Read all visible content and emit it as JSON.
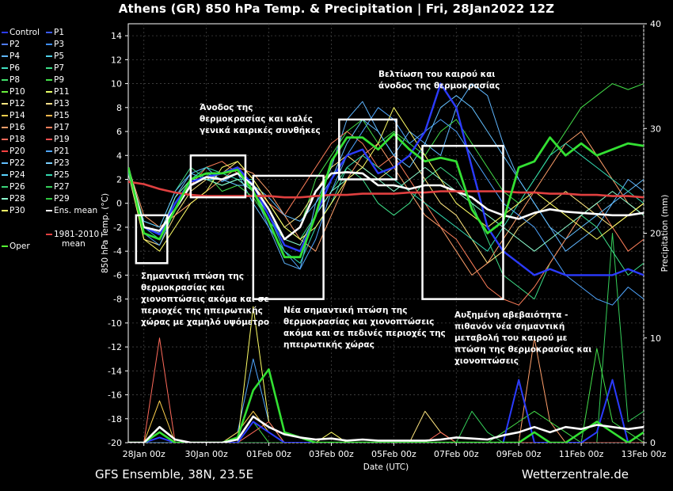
{
  "title": "Athens  (GR)  850 hPa Temp. & Precipitation | Fri, 28Jan2022 12Z",
  "footer": {
    "left": "GFS Ensemble, 38N, 23.5E",
    "right": "Wetterzentrale.de"
  },
  "legend": [
    {
      "label": "Control",
      "color": "#2b3bff"
    },
    {
      "label": "P1",
      "color": "#3a5cff"
    },
    {
      "label": "P2",
      "color": "#4f7bff"
    },
    {
      "label": "P3",
      "color": "#3f8fff"
    },
    {
      "label": "P4",
      "color": "#5fb6ff"
    },
    {
      "label": "P5",
      "color": "#4fd0e8"
    },
    {
      "label": "P6",
      "color": "#40e0c0"
    },
    {
      "label": "P7",
      "color": "#3ee089"
    },
    {
      "label": "P8",
      "color": "#41e06a"
    },
    {
      "label": "P9",
      "color": "#44e04a"
    },
    {
      "label": "P10",
      "color": "#6af03c"
    },
    {
      "label": "P11",
      "color": "#e8ff66"
    },
    {
      "label": "P12",
      "color": "#ffe680"
    },
    {
      "label": "P13",
      "color": "#ffe08a"
    },
    {
      "label": "P14",
      "color": "#ffd04d"
    },
    {
      "label": "P15",
      "color": "#ffb84d"
    },
    {
      "label": "P16",
      "color": "#ff9f6a"
    },
    {
      "label": "P17",
      "color": "#ff7f5a"
    },
    {
      "label": "P18",
      "color": "#ff6a5a"
    },
    {
      "label": "P19",
      "color": "#ff5050"
    },
    {
      "label": "P20",
      "color": "#ff4040"
    },
    {
      "label": "P21",
      "color": "#4fa6ff"
    },
    {
      "label": "P22",
      "color": "#62bfff"
    },
    {
      "label": "P23",
      "color": "#7ad0ff"
    },
    {
      "label": "P24",
      "color": "#59d4ff"
    },
    {
      "label": "P25",
      "color": "#33d9b0"
    },
    {
      "label": "P26",
      "color": "#3bd47a"
    },
    {
      "label": "P27",
      "color": "#35cf5a"
    },
    {
      "label": "P28",
      "color": "#8dffd0"
    },
    {
      "label": "P29",
      "color": "#2fc840"
    },
    {
      "label": "P30",
      "color": "#ffff66"
    },
    {
      "label": "Ens. mean",
      "color": "#ffffff"
    },
    {
      "label": "1981-2010 mean",
      "color": "#e04040"
    },
    {
      "label": "Oper",
      "color": "#55ff33"
    }
  ],
  "annotations": [
    {
      "id": "drop1",
      "lines": [
        "Σημαντική πτώση της",
        "θερμοκρασίας και",
        "χιονοπτώσεις ακόμα και σε",
        "περιοχές της ηπειρωτικής",
        "χώρας με χαμηλό υψόμετρο"
      ]
    },
    {
      "id": "rise1",
      "lines": [
        "Άνοδος της",
        "θερμοκρασίας και καλές",
        "γενικά καιρικές συνθήκες"
      ]
    },
    {
      "id": "drop2",
      "lines": [
        "Νέα σημαντική πτώση της",
        "θερμοκρασίας και χιονοπτώσεις",
        "ακόμα και σε πεδινές περιοχές της",
        "ηπειρωτικής χώρας"
      ]
    },
    {
      "id": "improve",
      "lines": [
        "Βελτίωση του καιρού και",
        "άνοδος της θερμοκρασίας"
      ]
    },
    {
      "id": "uncertain",
      "lines": [
        "Αυξημένη αβεβαιότητα -",
        "πιθανόν νέα σημαντική",
        "μεταβολή του καιρού με",
        "πτώση της θερμοκρασίας και",
        "χιονοπτώσεις"
      ]
    }
  ],
  "chart_data": {
    "type": "line",
    "xlabel": "Date (UTC)",
    "ylabel": "850 hPa Temp. (°C)",
    "y2label": "Precipitation (mm)",
    "ylim": [
      -20,
      15
    ],
    "y2lim": [
      0,
      40
    ],
    "yticks": [
      -20,
      -18,
      -16,
      -14,
      -12,
      -10,
      -8,
      -6,
      -4,
      -2,
      0,
      2,
      4,
      6,
      8,
      10,
      12,
      14
    ],
    "y2ticks": [
      0,
      10,
      20,
      30,
      40
    ],
    "xticks": [
      "28Jan 00z",
      "30Jan 00z",
      "01Feb 00z",
      "03Feb 00z",
      "05Feb 00z",
      "07Feb 00z",
      "09Feb 00z",
      "11Feb 00z",
      "13Feb 00z"
    ],
    "x_hours": [
      -12,
      0,
      12,
      24,
      36,
      48,
      60,
      72,
      84,
      96,
      108,
      120,
      132,
      144,
      156,
      168,
      180,
      192,
      204,
      216,
      228,
      240,
      252,
      264,
      276,
      288,
      300,
      312,
      324,
      336,
      348,
      360,
      372,
      384
    ],
    "series": [
      {
        "name": "Ens. mean",
        "color": "#ffffff",
        "width": 2.6,
        "values": [
          3,
          -2,
          -2.3,
          -0.5,
          1.5,
          2.2,
          2,
          2.5,
          1.5,
          -0.5,
          -3,
          -2,
          1,
          2.5,
          2.6,
          2.5,
          1.5,
          1.5,
          1.2,
          1.5,
          1.5,
          1,
          0.5,
          -0.5,
          -1,
          -1.3,
          -0.8,
          -0.5,
          -0.7,
          -0.8,
          -0.9,
          -1,
          -1,
          -0.8
        ]
      },
      {
        "name": "1981-2010 mean",
        "color": "#e04040",
        "width": 2.6,
        "values": [
          1.8,
          1.6,
          1.2,
          0.9,
          0.7,
          0.6,
          0.6,
          0.6,
          0.6,
          0.6,
          0.5,
          0.5,
          0.6,
          0.7,
          0.7,
          0.8,
          0.8,
          0.8,
          0.9,
          0.9,
          1,
          1,
          1,
          1,
          1,
          0.9,
          0.9,
          0.8,
          0.8,
          0.7,
          0.7,
          0.6,
          0.6,
          0.5
        ]
      },
      {
        "name": "Oper",
        "color": "#33e033",
        "width": 2.8,
        "values": [
          3,
          -2.5,
          -3,
          -0.5,
          2,
          2.5,
          2.5,
          2.8,
          1,
          -1.5,
          -4.5,
          -4.5,
          -1,
          3.5,
          5.5,
          5.5,
          4.5,
          5.8,
          4.5,
          3.5,
          3.8,
          3.5,
          -0.5,
          -2.5,
          -1.5,
          3,
          3.5,
          5.5,
          4,
          5,
          4,
          4.5,
          5,
          4.8
        ]
      },
      {
        "name": "Control",
        "color": "#2b3bff",
        "width": 2.4,
        "values": [
          2.8,
          -2,
          -2.6,
          0,
          1.8,
          2.2,
          2.5,
          3,
          1.5,
          -1,
          -3.5,
          -4,
          -1,
          2,
          4,
          4.5,
          2.5,
          3,
          4,
          6,
          10,
          8,
          3,
          -2,
          -4,
          -5,
          -6,
          -5.5,
          -6,
          -6,
          -6,
          -6,
          -5.5,
          -6
        ]
      },
      {
        "name": "P4",
        "color": "#5fb6ff",
        "width": 1,
        "values": [
          2.5,
          -2.5,
          -3,
          0.5,
          2.5,
          3,
          1.8,
          2.5,
          0,
          -2,
          -5,
          -5.5,
          0,
          3,
          7,
          8.5,
          6,
          4,
          6,
          5,
          4,
          8,
          10,
          9,
          5,
          2,
          0,
          -2,
          -4,
          -3,
          -2,
          0,
          2,
          1
        ]
      },
      {
        "name": "P7",
        "color": "#3ee089",
        "width": 1,
        "values": [
          3,
          -1.5,
          -2,
          1,
          3,
          2,
          1.5,
          2,
          2,
          0,
          -2,
          -3,
          -1,
          1,
          3,
          2,
          0,
          -1,
          0,
          2,
          3,
          2,
          0,
          -3,
          -6,
          -7,
          -8,
          -5,
          -3,
          -1,
          -2,
          -4,
          -6,
          -5
        ]
      },
      {
        "name": "P9",
        "color": "#44e04a",
        "width": 1,
        "values": [
          3,
          -2,
          -2.5,
          0,
          2,
          2.5,
          1,
          1.5,
          0.5,
          -1.5,
          -3,
          -2,
          2,
          4,
          6,
          7,
          5,
          6,
          5,
          4,
          6,
          7,
          5,
          3,
          1,
          0,
          2,
          4,
          6,
          8,
          9,
          10,
          9.5,
          10
        ]
      },
      {
        "name": "P12",
        "color": "#ffe680",
        "width": 1,
        "values": [
          2.5,
          -3,
          -3.5,
          -1,
          1,
          2,
          2.5,
          3.5,
          2,
          0,
          -2,
          -1,
          1,
          3,
          4,
          3,
          2,
          3,
          4,
          2,
          0,
          -1,
          -3,
          -5,
          -4,
          -2,
          -1,
          0,
          1,
          0,
          -1,
          -2,
          -1,
          0
        ]
      },
      {
        "name": "P16",
        "color": "#ff9f6a",
        "width": 1,
        "values": [
          3,
          -1,
          -2,
          -1,
          0,
          1,
          2,
          3,
          2.5,
          1,
          -1,
          -3,
          -4,
          -1,
          2,
          4,
          5,
          3,
          1,
          -1,
          -2,
          -4,
          -6,
          -5,
          -3,
          -1,
          1,
          3,
          5,
          6,
          4,
          2,
          0,
          -1
        ]
      },
      {
        "name": "P17",
        "color": "#ff7f5a",
        "width": 1,
        "values": [
          2.5,
          -2,
          -2.5,
          0,
          1.5,
          3,
          3.5,
          2.5,
          1.5,
          0,
          -1,
          1,
          3,
          5,
          6,
          5,
          3,
          4,
          2,
          0,
          -2,
          -3,
          -5,
          -7,
          -8,
          -8.5,
          -7,
          -5,
          -3,
          -1,
          0,
          -2,
          -4,
          -3
        ]
      },
      {
        "name": "P21",
        "color": "#4fa6ff",
        "width": 1,
        "values": [
          3,
          -2.5,
          -3.5,
          -0.5,
          2,
          2.5,
          2,
          2.5,
          1,
          -2,
          -4,
          -5.5,
          -3,
          1,
          4,
          6,
          8,
          7,
          5,
          6,
          7,
          6,
          4,
          2,
          0,
          -1,
          -2,
          -4,
          -6,
          -7,
          -8,
          -8.5,
          -7,
          -8
        ]
      },
      {
        "name": "P22",
        "color": "#62bfff",
        "width": 1,
        "values": [
          2.5,
          -1.5,
          -2,
          1,
          2.5,
          2,
          2,
          1.5,
          1.5,
          0.5,
          -1,
          -1.5,
          0,
          2,
          5,
          7,
          6,
          4,
          3,
          5,
          8,
          9,
          8,
          6,
          4,
          2,
          0,
          -2,
          -3,
          -2,
          -1,
          0,
          1,
          2
        ]
      },
      {
        "name": "P25",
        "color": "#33d9b0",
        "width": 1,
        "values": [
          3,
          -2,
          -3,
          0,
          2,
          3,
          2.5,
          2,
          1,
          -1,
          -4,
          -5,
          -2,
          0,
          3,
          4,
          3,
          2,
          1,
          0,
          -1,
          -2,
          -3,
          -4,
          -2,
          0,
          2,
          4,
          5,
          4,
          3,
          2,
          1,
          0
        ]
      },
      {
        "name": "P28",
        "color": "#8dffd0",
        "width": 1,
        "values": [
          2.5,
          -2,
          -2.5,
          0.5,
          2,
          2,
          1.5,
          2,
          1,
          -1,
          -3,
          -3.5,
          -1,
          1,
          2,
          3,
          2,
          1,
          2,
          3,
          2,
          1,
          0,
          -1,
          -2,
          -3,
          -4,
          -3,
          -2,
          -1,
          0,
          1,
          0,
          -1
        ]
      },
      {
        "name": "P30",
        "color": "#ffff66",
        "width": 1,
        "values": [
          3,
          -3,
          -4,
          -2,
          0,
          1,
          3,
          3.5,
          2,
          0,
          -2,
          -3,
          -2,
          0,
          2,
          3,
          5,
          8,
          6,
          4,
          2,
          0,
          -1,
          -2,
          -1,
          0,
          1,
          0,
          -1,
          -2,
          -3,
          -2,
          -1,
          0
        ]
      }
    ],
    "precip_series": [
      {
        "name": "Ens. mean",
        "color": "#ffffff",
        "width": 2.6,
        "values": [
          0,
          0,
          1.5,
          0.3,
          0,
          0,
          0,
          0.3,
          2.5,
          1.5,
          0.8,
          0.5,
          0.3,
          0.4,
          0.2,
          0.3,
          0.2,
          0.2,
          0.2,
          0.2,
          0.3,
          0.5,
          0.4,
          0.3,
          0.7,
          1,
          1.5,
          1,
          1.5,
          1.3,
          1.7,
          1.5,
          1.3,
          1.5
        ]
      },
      {
        "name": "Oper",
        "color": "#33e033",
        "width": 2.6,
        "values": [
          0,
          0,
          1,
          0,
          0,
          0,
          0,
          0.5,
          5,
          7,
          1,
          0.5,
          0,
          0,
          0,
          0,
          0,
          0,
          0,
          0,
          0,
          0,
          0,
          0,
          0,
          0,
          1,
          0,
          0,
          1,
          2,
          1,
          0,
          1
        ]
      },
      {
        "name": "Control",
        "color": "#2b3bff",
        "width": 2,
        "values": [
          0,
          0,
          0.5,
          0,
          0,
          0,
          0,
          0,
          2,
          1,
          0,
          0,
          0,
          0,
          0,
          0,
          0,
          0,
          0,
          0,
          0,
          0,
          0,
          0,
          0,
          6,
          0,
          0,
          0,
          0,
          1,
          6,
          0,
          1
        ]
      },
      {
        "name": "P18",
        "color": "#ff6a5a",
        "width": 1,
        "values": [
          0,
          0,
          10,
          0,
          0,
          0,
          0,
          0,
          1,
          2,
          0,
          0,
          0,
          0,
          0,
          0,
          0,
          0,
          0,
          0,
          1,
          0,
          0,
          0,
          0,
          0,
          0,
          0,
          0,
          0,
          0,
          0,
          0,
          0
        ]
      },
      {
        "name": "P14",
        "color": "#ffd04d",
        "width": 1,
        "values": [
          0,
          0,
          4,
          0,
          0,
          0,
          0,
          1,
          3,
          1,
          0,
          0,
          0,
          0,
          0,
          0,
          0,
          0,
          0,
          0,
          0,
          0,
          0,
          0,
          0,
          0,
          0,
          0,
          0,
          0,
          0,
          0,
          0,
          0
        ]
      },
      {
        "name": "P30",
        "color": "#ffff66",
        "width": 1,
        "values": [
          0,
          0,
          1,
          0,
          0,
          0,
          0,
          0,
          13,
          2,
          0,
          0,
          0,
          1,
          0,
          0,
          0,
          0,
          0,
          0,
          0,
          0,
          0,
          0,
          0,
          0,
          0,
          0,
          0,
          0,
          0,
          0,
          0,
          0
        ]
      },
      {
        "name": "P21",
        "color": "#4fa6ff",
        "width": 1,
        "values": [
          0,
          0,
          0,
          0,
          0,
          0,
          0,
          1,
          8,
          2,
          0,
          0,
          0,
          0,
          0,
          0,
          0,
          0,
          0,
          0,
          0,
          0,
          0,
          0,
          0,
          0,
          0,
          0,
          0,
          0,
          0,
          0,
          0,
          0
        ]
      },
      {
        "name": "P9",
        "color": "#44e04a",
        "width": 1,
        "values": [
          0,
          0,
          0,
          0,
          0,
          0,
          0,
          0,
          2,
          0,
          0,
          0,
          0,
          0,
          0,
          0,
          0,
          0,
          0,
          0,
          0,
          0,
          0,
          0,
          1,
          2,
          3,
          2,
          1,
          0,
          9,
          2,
          1,
          0
        ]
      },
      {
        "name": "P27",
        "color": "#35cf5a",
        "width": 1,
        "values": [
          0,
          0,
          0,
          0,
          0,
          0,
          0,
          0,
          0,
          0,
          0,
          0,
          0,
          0,
          0,
          0,
          0,
          0,
          0,
          0,
          0,
          0,
          3,
          1,
          0,
          0,
          0,
          0,
          0,
          0,
          0,
          20,
          2,
          3
        ]
      },
      {
        "name": "P16",
        "color": "#ff9f6a",
        "width": 1,
        "values": [
          0,
          0,
          0,
          0,
          0,
          0,
          0,
          0,
          0,
          0,
          0,
          0,
          0,
          0,
          0,
          0,
          0,
          0,
          0,
          0,
          0,
          0,
          0,
          0,
          0,
          0,
          10,
          2,
          0,
          0,
          0,
          0,
          0,
          0
        ]
      },
      {
        "name": "P12",
        "color": "#ffe680",
        "width": 1,
        "values": [
          0,
          0,
          0,
          0,
          0,
          0,
          0,
          0,
          0,
          0,
          0,
          0,
          0,
          0,
          0,
          0,
          0,
          0,
          0,
          3,
          1,
          0,
          0,
          0,
          0,
          0,
          0,
          0,
          0,
          0,
          0,
          0,
          0,
          0
        ]
      }
    ]
  }
}
